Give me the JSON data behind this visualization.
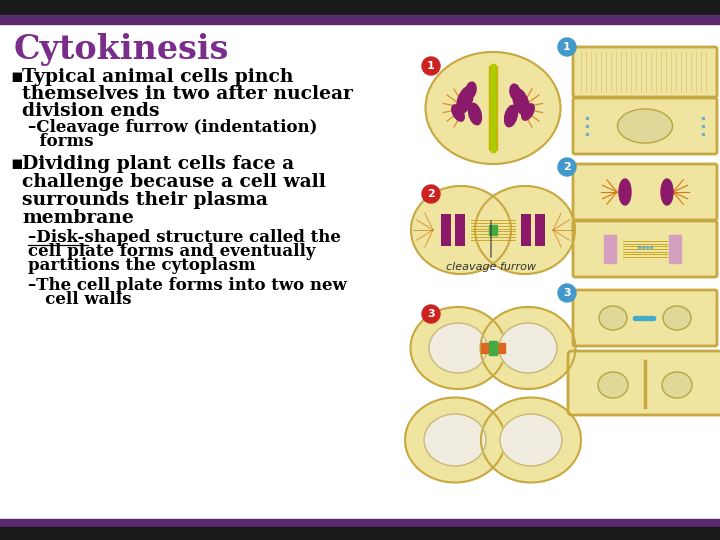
{
  "title": "Cytokinesis",
  "title_color": "#7B2D8B",
  "background_color": "#FFFFFF",
  "border_top_dark": "#1A1A1A",
  "border_top_purple": "#5C2A6E",
  "border_bottom_purple": "#5C2A6E",
  "border_bottom_dark": "#1A1A1A",
  "bullet1_main_line1": "Typical animal cells pinch",
  "bullet1_main_line2": "themselves in two after nuclear",
  "bullet1_main_line3": "division ends",
  "bullet1_sub1_line1": "–Cleavage furrow (indentation)",
  "bullet1_sub1_line2": "  forms",
  "bullet2_main_line1": "Dividing plant cells face a",
  "bullet2_main_line2": "challenge because a cell wall",
  "bullet2_main_line3": "surrounds their plasma",
  "bullet2_main_line4": "membrane",
  "bullet2_sub1_line1": "–Disk-shaped structure called the",
  "bullet2_sub1_line2": "cell plate forms and eventually",
  "bullet2_sub1_line3": "partitions the cytoplasm",
  "bullet2_sub2_line1": "–The cell plate forms into two new",
  "bullet2_sub2_line2": "   cell walls",
  "cleavage_label": "cleavage furrow",
  "text_color": "#000000",
  "cell_fill": "#EFE4A0",
  "cell_edge": "#C8A840",
  "cell_inner_fill": "#F5EEC8",
  "nucleus_white": "#F0EDE0",
  "chrom_color": "#8B1A6B",
  "spindle_color": "#C8B400",
  "aster_color": "#D47A10",
  "cleavage_ring_color": "#CC6600",
  "cell_plate_color": "#D4A0C0",
  "plant_cell_fill": "#EFE4A0",
  "plant_cell_edge": "#C8A840",
  "num_red": "#CC2222",
  "num_blue": "#4499CC",
  "font_size_title": 24,
  "font_size_body": 13.5,
  "font_size_sub": 12,
  "font_size_label": 8
}
